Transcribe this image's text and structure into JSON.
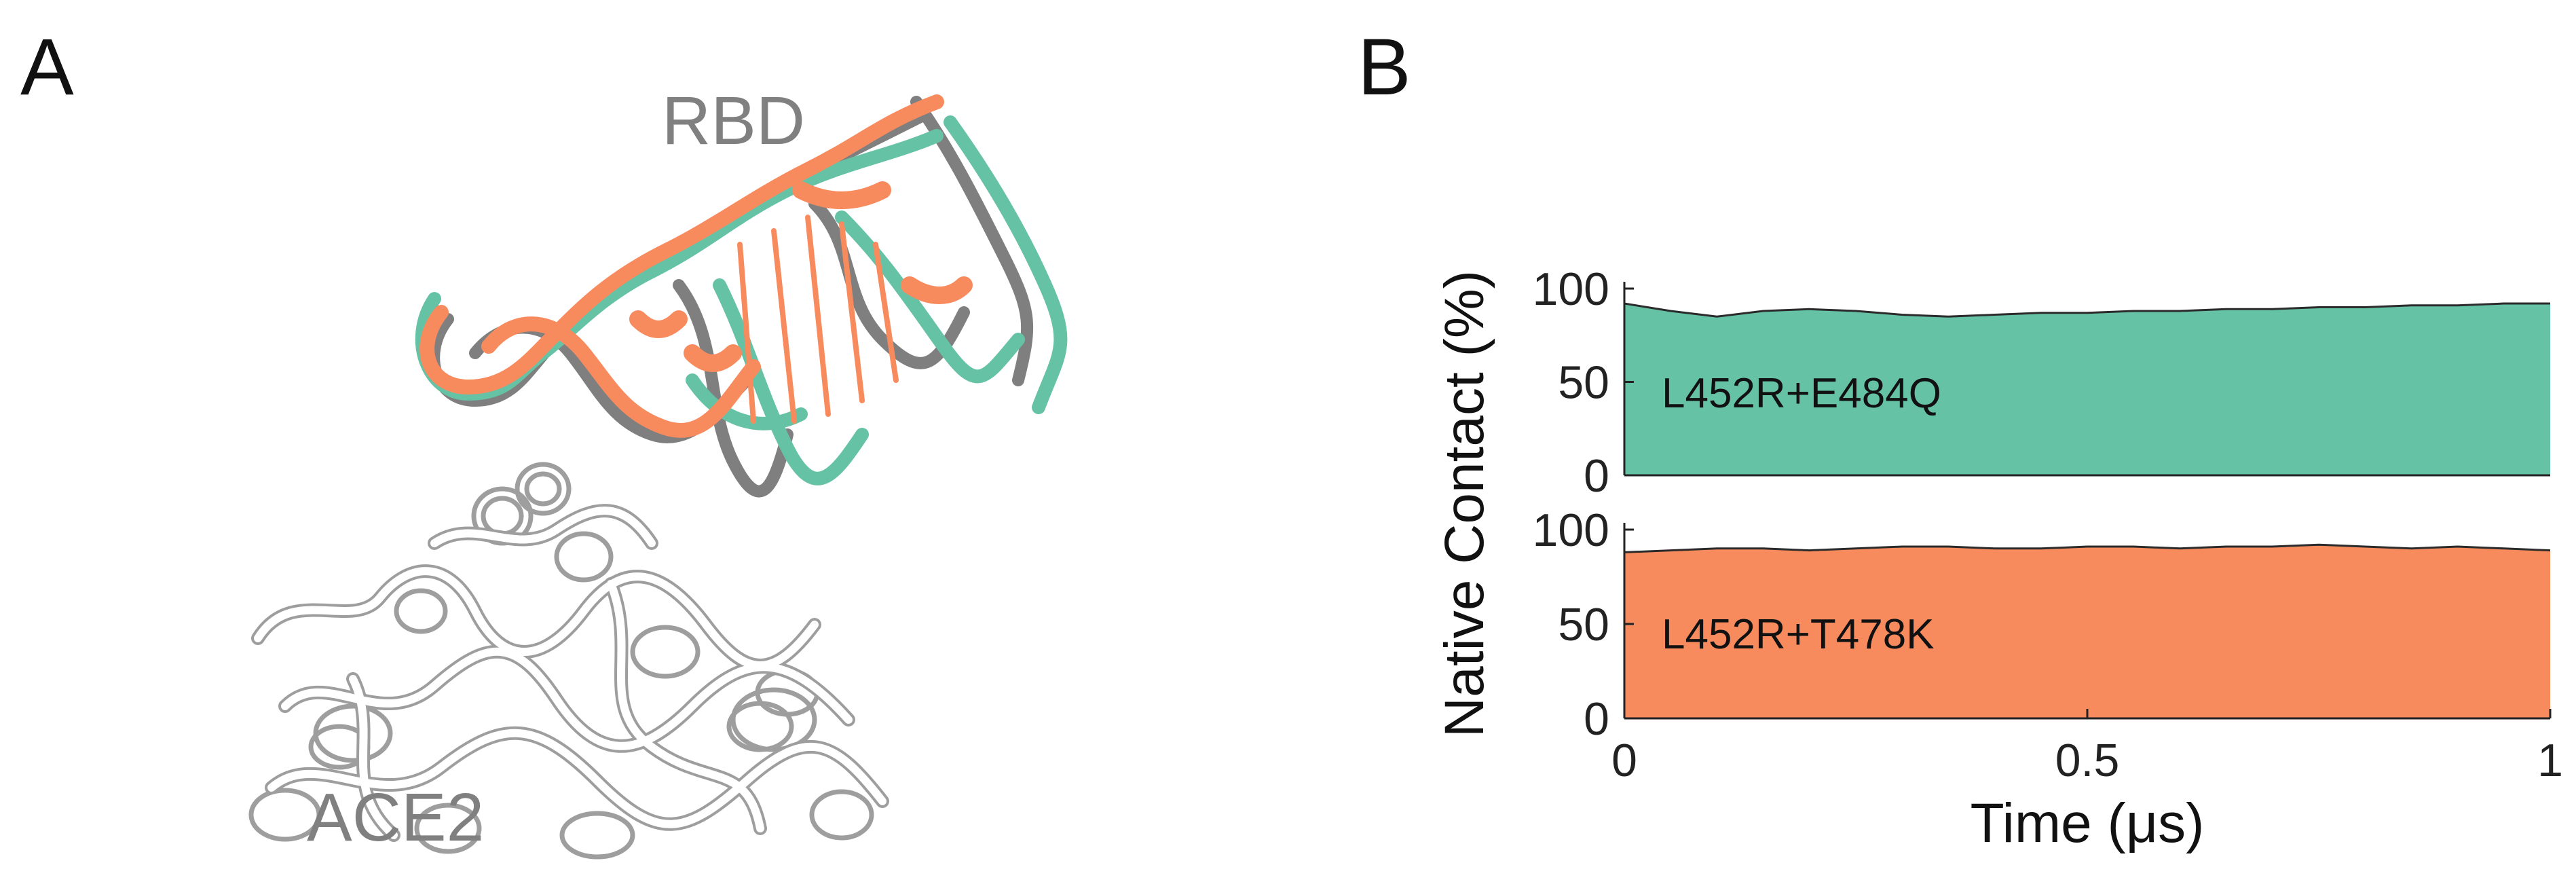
{
  "figure": {
    "panel_a_letter": "A",
    "panel_b_letter": "B"
  },
  "panel_a": {
    "rbd_label": "RBD",
    "ace2_label": "ACE2",
    "colors": {
      "variant1": "#66c2a5",
      "variant2": "#f88b5e",
      "reference": "#7f7f7f",
      "ace2": "#9e9e9e"
    }
  },
  "chart_data": {
    "type": "area",
    "xlabel": "Time (μs)",
    "ylabel": "Native Contact (%)",
    "xlim": [
      0,
      1
    ],
    "ylim": [
      0,
      100
    ],
    "x_ticks": [
      "0",
      "0.5",
      "1"
    ],
    "y_ticks": [
      "0",
      "50",
      "100"
    ],
    "grid": false,
    "series": [
      {
        "name": "L452R+E484Q",
        "color": "#66c2a5",
        "x": [
          0,
          0.05,
          0.1,
          0.15,
          0.2,
          0.25,
          0.3,
          0.35,
          0.4,
          0.45,
          0.5,
          0.55,
          0.6,
          0.65,
          0.7,
          0.75,
          0.8,
          0.85,
          0.9,
          0.95,
          1.0
        ],
        "values": [
          92,
          88,
          85,
          88,
          89,
          88,
          86,
          85,
          86,
          87,
          87,
          88,
          88,
          89,
          89,
          90,
          90,
          91,
          91,
          92,
          92
        ]
      },
      {
        "name": "L452R+T478K",
        "color": "#f88b5e",
        "x": [
          0,
          0.05,
          0.1,
          0.15,
          0.2,
          0.25,
          0.3,
          0.35,
          0.4,
          0.45,
          0.5,
          0.55,
          0.6,
          0.65,
          0.7,
          0.75,
          0.8,
          0.85,
          0.9,
          0.95,
          1.0
        ],
        "values": [
          88,
          89,
          90,
          90,
          89,
          90,
          91,
          91,
          90,
          90,
          91,
          91,
          90,
          91,
          91,
          92,
          91,
          90,
          91,
          90,
          89
        ]
      }
    ]
  }
}
